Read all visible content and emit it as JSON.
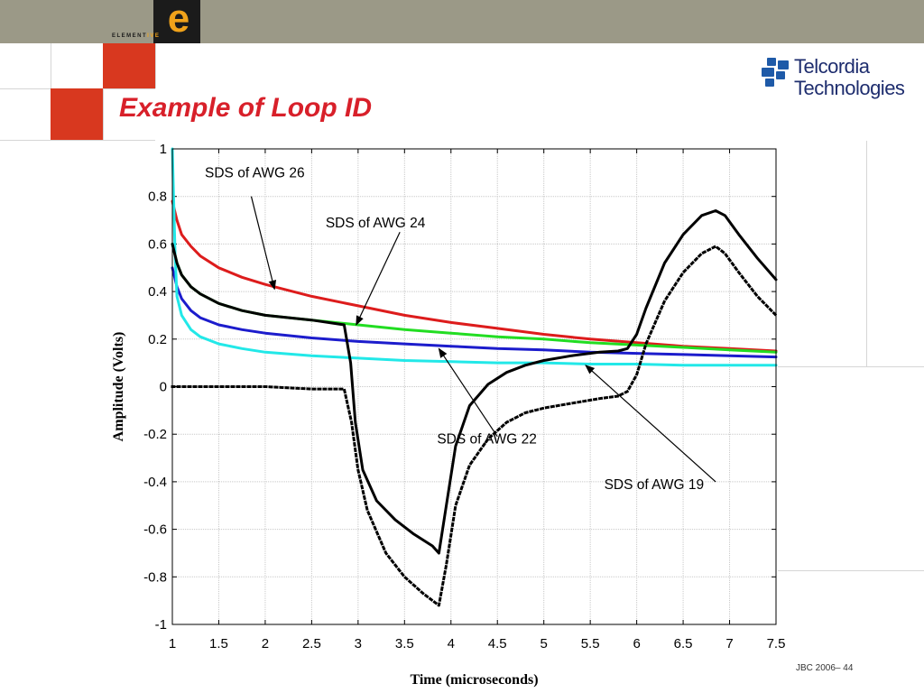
{
  "slide": {
    "title": "Example of Loop ID",
    "footer": "JBC 2006– 44",
    "colors": {
      "title": "#d8202a",
      "topbar": "#9b9987",
      "accent_square": "#d8381f"
    }
  },
  "branding": {
    "element_logo": {
      "letter": "e",
      "word_main": "ELEMENT",
      "word_accent": "IVE",
      "accent_color": "#f0a21a"
    },
    "telcordia": {
      "line1": "Telcordia",
      "line2": "Technologies",
      "color": "#1e2d6e",
      "icon": "telcordia-logo-icon"
    }
  },
  "chart_data": {
    "type": "line",
    "title": "",
    "xlabel": "Time (microseconds)",
    "ylabel": "Amplitude (Volts)",
    "xlim": [
      1,
      7.5
    ],
    "ylim": [
      -1,
      1
    ],
    "grid": true,
    "xticks": [
      "1",
      "1.5",
      "2",
      "2.5",
      "3",
      "3.5",
      "4",
      "4.5",
      "5",
      "5.5",
      "6",
      "6.5",
      "7",
      "7.5"
    ],
    "yticks": [
      "1",
      "0.8",
      "0.6",
      "0.4",
      "0.2",
      "0",
      "-0.2",
      "-0.4",
      "-0.6",
      "-0.8",
      "-1"
    ],
    "series": [
      {
        "color": "#dd1c1c",
        "dash": "solid",
        "x": [
          1.0,
          1.05,
          1.1,
          1.2,
          1.3,
          1.5,
          1.75,
          2.0,
          2.5,
          3.0,
          3.5,
          4.0,
          4.5,
          5.0,
          5.5,
          6.0,
          6.5,
          7.0,
          7.5
        ],
        "y": [
          0.78,
          0.7,
          0.64,
          0.59,
          0.55,
          0.5,
          0.46,
          0.43,
          0.38,
          0.34,
          0.3,
          0.27,
          0.245,
          0.22,
          0.2,
          0.185,
          0.17,
          0.16,
          0.15
        ]
      },
      {
        "color": "#22dd22",
        "dash": "solid",
        "x": [
          1.0,
          1.05,
          1.1,
          1.2,
          1.3,
          1.5,
          1.75,
          2.0,
          2.5,
          3.0,
          3.5,
          4.0,
          4.5,
          5.0,
          5.5,
          6.0,
          6.5,
          7.0,
          7.5
        ],
        "y": [
          0.6,
          0.52,
          0.47,
          0.42,
          0.39,
          0.35,
          0.32,
          0.3,
          0.28,
          0.26,
          0.24,
          0.225,
          0.21,
          0.2,
          0.185,
          0.175,
          0.165,
          0.155,
          0.145
        ]
      },
      {
        "color": "#1c1ccc",
        "dash": "solid",
        "x": [
          1.0,
          1.05,
          1.1,
          1.2,
          1.3,
          1.5,
          1.75,
          2.0,
          2.5,
          3.0,
          3.5,
          4.0,
          4.5,
          5.0,
          5.5,
          6.0,
          6.5,
          7.0,
          7.5
        ],
        "y": [
          0.5,
          0.42,
          0.37,
          0.32,
          0.29,
          0.26,
          0.24,
          0.225,
          0.205,
          0.19,
          0.18,
          0.17,
          0.16,
          0.155,
          0.145,
          0.14,
          0.135,
          0.13,
          0.125
        ]
      },
      {
        "color": "#22e8e8",
        "dash": "solid",
        "x": [
          1.0,
          1.03,
          1.05,
          1.1,
          1.2,
          1.3,
          1.5,
          1.75,
          2.0,
          2.5,
          3.0,
          3.5,
          4.0,
          4.5,
          5.0,
          5.5,
          6.0,
          6.5,
          7.0,
          7.5
        ],
        "y": [
          1.0,
          0.55,
          0.38,
          0.3,
          0.24,
          0.21,
          0.18,
          0.16,
          0.145,
          0.13,
          0.12,
          0.11,
          0.105,
          0.1,
          0.1,
          0.095,
          0.095,
          0.09,
          0.09,
          0.09
        ]
      },
      {
        "color": "#000000",
        "dash": "solid",
        "x": [
          1.0,
          1.05,
          1.1,
          1.2,
          1.3,
          1.5,
          1.75,
          2.0,
          2.5,
          2.85,
          2.92,
          2.97,
          3.05,
          3.2,
          3.4,
          3.6,
          3.8,
          3.87,
          3.95,
          4.05,
          4.2,
          4.4,
          4.6,
          4.8,
          5.0,
          5.3,
          5.6,
          5.8,
          5.9,
          6.0,
          6.1,
          6.3,
          6.5,
          6.7,
          6.85,
          6.95,
          7.1,
          7.3,
          7.5
        ],
        "y": [
          0.6,
          0.52,
          0.47,
          0.42,
          0.39,
          0.35,
          0.32,
          0.3,
          0.28,
          0.26,
          0.1,
          -0.15,
          -0.35,
          -0.48,
          -0.56,
          -0.62,
          -0.67,
          -0.7,
          -0.5,
          -0.25,
          -0.08,
          0.01,
          0.06,
          0.09,
          0.11,
          0.13,
          0.145,
          0.15,
          0.16,
          0.22,
          0.33,
          0.52,
          0.64,
          0.72,
          0.74,
          0.72,
          0.64,
          0.54,
          0.45
        ]
      },
      {
        "color": "#000000",
        "dash": "dotted",
        "x": [
          1.0,
          1.5,
          2.0,
          2.5,
          2.85,
          2.93,
          3.0,
          3.1,
          3.3,
          3.5,
          3.7,
          3.87,
          3.95,
          4.05,
          4.2,
          4.4,
          4.6,
          4.8,
          5.0,
          5.3,
          5.6,
          5.8,
          5.9,
          6.0,
          6.1,
          6.3,
          6.5,
          6.7,
          6.85,
          6.95,
          7.1,
          7.3,
          7.5
        ],
        "y": [
          0.0,
          0.0,
          0.0,
          -0.01,
          -0.01,
          -0.15,
          -0.35,
          -0.52,
          -0.7,
          -0.8,
          -0.87,
          -0.92,
          -0.75,
          -0.5,
          -0.33,
          -0.22,
          -0.15,
          -0.11,
          -0.09,
          -0.07,
          -0.05,
          -0.04,
          -0.02,
          0.05,
          0.18,
          0.36,
          0.48,
          0.56,
          0.59,
          0.56,
          0.48,
          0.38,
          0.3
        ]
      }
    ],
    "annotations": [
      {
        "text": "SDS of AWG 26",
        "anchor": [
          1.35,
          0.88
        ],
        "arrow_from": [
          1.85,
          0.8
        ],
        "arrow_to": [
          2.1,
          0.41
        ]
      },
      {
        "text": "SDS of AWG 24",
        "anchor": [
          2.65,
          0.67
        ],
        "arrow_from": [
          3.45,
          0.65
        ],
        "arrow_to": [
          2.98,
          0.26
        ]
      },
      {
        "text": "SDS of AWG 22",
        "anchor": [
          3.85,
          -0.24
        ],
        "arrow_from": [
          4.5,
          -0.21
        ],
        "arrow_to": [
          3.87,
          0.16
        ]
      },
      {
        "text": "SDS of AWG 19",
        "anchor": [
          5.65,
          -0.43
        ],
        "arrow_from": [
          6.85,
          -0.4
        ],
        "arrow_to": [
          5.45,
          0.09
        ]
      }
    ]
  }
}
